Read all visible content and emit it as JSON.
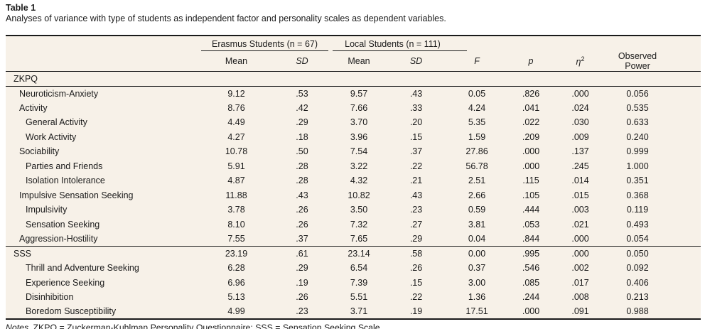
{
  "page": {
    "title": "Table 1",
    "caption": "Analyses of variance with type of students as independent factor and personality scales as dependent variables.",
    "notes_label": "Notes.",
    "notes_text": "ZKPQ = Zuckerman-Kuhlman Personality Questionnaire; SSS = Sensation Seeking Scale."
  },
  "colors": {
    "panel_background": "#f7f1e8",
    "text": "#1b1b1b",
    "rule": "#1a1a1a"
  },
  "table": {
    "group_headers": {
      "erasmus": "Erasmus Students (n = 67)",
      "local": "Local Students (n = 111)"
    },
    "column_headers": {
      "mean_erasmus": "Mean",
      "sd_erasmus": "SD",
      "mean_local": "Mean",
      "sd_local": "SD",
      "f": "F",
      "p": "p",
      "eta": "η",
      "eta_sup": "2",
      "observed_power": "Observed Power"
    },
    "rows": [
      {
        "label": "ZKPQ",
        "indent": 0,
        "rule_below": true,
        "cells": [
          "",
          "",
          "",
          "",
          "",
          "",
          "",
          ""
        ]
      },
      {
        "label": "Neuroticism-Anxiety",
        "indent": 1,
        "cells": [
          "9.12",
          ".53",
          "9.57",
          ".43",
          "0.05",
          ".826",
          ".000",
          "0.056"
        ]
      },
      {
        "label": "Activity",
        "indent": 1,
        "cells": [
          "8.76",
          ".42",
          "7.66",
          ".33",
          "4.24",
          ".041",
          ".024",
          "0.535"
        ]
      },
      {
        "label": "General Activity",
        "indent": 2,
        "cells": [
          "4.49",
          ".29",
          "3.70",
          ".20",
          "5.35",
          ".022",
          ".030",
          "0.633"
        ]
      },
      {
        "label": "Work Activity",
        "indent": 2,
        "cells": [
          "4.27",
          ".18",
          "3.96",
          ".15",
          "1.59",
          ".209",
          ".009",
          "0.240"
        ]
      },
      {
        "label": "Sociability",
        "indent": 1,
        "cells": [
          "10.78",
          ".50",
          "7.54",
          ".37",
          "27.86",
          ".000",
          ".137",
          "0.999"
        ]
      },
      {
        "label": "Parties and Friends",
        "indent": 2,
        "cells": [
          "5.91",
          ".28",
          "3.22",
          ".22",
          "56.78",
          ".000",
          ".245",
          "1.000"
        ]
      },
      {
        "label": "Isolation Intolerance",
        "indent": 2,
        "cells": [
          "4.87",
          ".28",
          "4.32",
          ".21",
          "2.51",
          ".115",
          ".014",
          "0.351"
        ]
      },
      {
        "label": "Impulsive Sensation Seeking",
        "indent": 1,
        "cells": [
          "11.88",
          ".43",
          "10.82",
          ".43",
          "2.66",
          ".105",
          ".015",
          "0.368"
        ]
      },
      {
        "label": "Impulsivity",
        "indent": 2,
        "cells": [
          "3.78",
          ".26",
          "3.50",
          ".23",
          "0.59",
          ".444",
          ".003",
          "0.119"
        ]
      },
      {
        "label": "Sensation Seeking",
        "indent": 2,
        "cells": [
          "8.10",
          ".26",
          "7.32",
          ".27",
          "3.81",
          ".053",
          ".021",
          "0.493"
        ]
      },
      {
        "label": "Aggression-Hostility",
        "indent": 1,
        "cells": [
          "7.55",
          ".37",
          "7.65",
          ".29",
          "0.04",
          ".844",
          ".000",
          "0.054"
        ]
      },
      {
        "label": "SSS",
        "indent": 0,
        "rule_above": true,
        "cells": [
          "23.19",
          ".61",
          "23.14",
          ".58",
          "0.00",
          ".995",
          ".000",
          "0.050"
        ]
      },
      {
        "label": "Thrill and Adventure Seeking",
        "indent": 2,
        "cells": [
          "6.28",
          ".29",
          "6.54",
          ".26",
          "0.37",
          ".546",
          ".002",
          "0.092"
        ]
      },
      {
        "label": "Experience Seeking",
        "indent": 2,
        "cells": [
          "6.96",
          ".19",
          "7.39",
          ".15",
          "3.00",
          ".085",
          ".017",
          "0.406"
        ]
      },
      {
        "label": "Disinhibition",
        "indent": 2,
        "cells": [
          "5.13",
          ".26",
          "5.51",
          ".22",
          "1.36",
          ".244",
          ".008",
          "0.213"
        ]
      },
      {
        "label": "Boredom Susceptibility",
        "indent": 2,
        "cells": [
          "4.99",
          ".23",
          "3.71",
          ".19",
          "17.51",
          ".000",
          ".091",
          "0.988"
        ]
      }
    ]
  }
}
